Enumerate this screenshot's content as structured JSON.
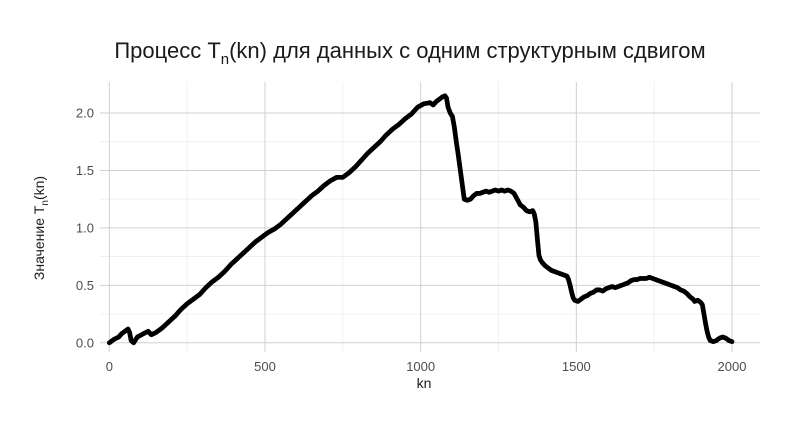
{
  "chart_data": {
    "type": "scatter",
    "title_main": "Процесс T",
    "title_sub": "n",
    "title_rest": "(kn) для данных с одним структурным сдвигом",
    "xlabel": "kn",
    "ylabel_main": "Значение T",
    "ylabel_sub": "n",
    "ylabel_rest": "(kn)",
    "xlim": [
      -30,
      2090
    ],
    "ylim": [
      -0.08,
      2.27
    ],
    "x_ticks": [
      0,
      500,
      1000,
      1500,
      2000
    ],
    "x_tick_labels": [
      "0",
      "500",
      "1000",
      "1500",
      "2000"
    ],
    "y_ticks": [
      0.0,
      0.5,
      1.0,
      1.5,
      2.0
    ],
    "y_tick_labels": [
      "0.0",
      "0.5",
      "1.0",
      "1.5",
      "2.0"
    ],
    "grid": true,
    "point_color": "#000000",
    "points": [
      [
        0,
        0.0
      ],
      [
        15,
        0.03
      ],
      [
        30,
        0.05
      ],
      [
        40,
        0.08
      ],
      [
        50,
        0.1
      ],
      [
        60,
        0.12
      ],
      [
        65,
        0.09
      ],
      [
        70,
        0.02
      ],
      [
        78,
        0.0
      ],
      [
        90,
        0.05
      ],
      [
        110,
        0.08
      ],
      [
        125,
        0.1
      ],
      [
        135,
        0.07
      ],
      [
        150,
        0.09
      ],
      [
        170,
        0.13
      ],
      [
        190,
        0.18
      ],
      [
        210,
        0.23
      ],
      [
        230,
        0.29
      ],
      [
        250,
        0.34
      ],
      [
        270,
        0.38
      ],
      [
        290,
        0.42
      ],
      [
        310,
        0.48
      ],
      [
        330,
        0.53
      ],
      [
        350,
        0.57
      ],
      [
        370,
        0.62
      ],
      [
        390,
        0.68
      ],
      [
        410,
        0.73
      ],
      [
        430,
        0.78
      ],
      [
        450,
        0.83
      ],
      [
        470,
        0.88
      ],
      [
        490,
        0.92
      ],
      [
        510,
        0.96
      ],
      [
        530,
        0.99
      ],
      [
        550,
        1.03
      ],
      [
        570,
        1.08
      ],
      [
        590,
        1.13
      ],
      [
        610,
        1.18
      ],
      [
        630,
        1.23
      ],
      [
        650,
        1.28
      ],
      [
        670,
        1.32
      ],
      [
        690,
        1.37
      ],
      [
        710,
        1.41
      ],
      [
        730,
        1.44
      ],
      [
        750,
        1.44
      ],
      [
        770,
        1.48
      ],
      [
        790,
        1.53
      ],
      [
        810,
        1.59
      ],
      [
        830,
        1.65
      ],
      [
        850,
        1.7
      ],
      [
        870,
        1.75
      ],
      [
        890,
        1.81
      ],
      [
        910,
        1.86
      ],
      [
        930,
        1.9
      ],
      [
        950,
        1.95
      ],
      [
        970,
        1.99
      ],
      [
        990,
        2.05
      ],
      [
        1010,
        2.08
      ],
      [
        1030,
        2.09
      ],
      [
        1040,
        2.07
      ],
      [
        1050,
        2.1
      ],
      [
        1060,
        2.12
      ],
      [
        1070,
        2.14
      ],
      [
        1078,
        2.15
      ],
      [
        1083,
        2.13
      ],
      [
        1088,
        2.05
      ],
      [
        1095,
        2.0
      ],
      [
        1102,
        1.97
      ],
      [
        1108,
        1.88
      ],
      [
        1112,
        1.8
      ],
      [
        1116,
        1.72
      ],
      [
        1120,
        1.65
      ],
      [
        1125,
        1.55
      ],
      [
        1130,
        1.45
      ],
      [
        1135,
        1.35
      ],
      [
        1140,
        1.25
      ],
      [
        1150,
        1.24
      ],
      [
        1160,
        1.25
      ],
      [
        1170,
        1.28
      ],
      [
        1180,
        1.3
      ],
      [
        1190,
        1.3
      ],
      [
        1200,
        1.31
      ],
      [
        1210,
        1.32
      ],
      [
        1220,
        1.31
      ],
      [
        1230,
        1.32
      ],
      [
        1240,
        1.33
      ],
      [
        1250,
        1.32
      ],
      [
        1260,
        1.33
      ],
      [
        1270,
        1.32
      ],
      [
        1280,
        1.33
      ],
      [
        1290,
        1.32
      ],
      [
        1300,
        1.3
      ],
      [
        1310,
        1.25
      ],
      [
        1320,
        1.2
      ],
      [
        1330,
        1.18
      ],
      [
        1340,
        1.15
      ],
      [
        1350,
        1.14
      ],
      [
        1360,
        1.15
      ],
      [
        1365,
        1.12
      ],
      [
        1370,
        1.05
      ],
      [
        1375,
        0.9
      ],
      [
        1380,
        0.76
      ],
      [
        1385,
        0.72
      ],
      [
        1390,
        0.7
      ],
      [
        1400,
        0.67
      ],
      [
        1410,
        0.65
      ],
      [
        1420,
        0.63
      ],
      [
        1430,
        0.62
      ],
      [
        1440,
        0.61
      ],
      [
        1450,
        0.6
      ],
      [
        1460,
        0.59
      ],
      [
        1470,
        0.58
      ],
      [
        1475,
        0.55
      ],
      [
        1480,
        0.5
      ],
      [
        1485,
        0.44
      ],
      [
        1490,
        0.39
      ],
      [
        1495,
        0.37
      ],
      [
        1505,
        0.36
      ],
      [
        1515,
        0.38
      ],
      [
        1525,
        0.4
      ],
      [
        1535,
        0.41
      ],
      [
        1545,
        0.43
      ],
      [
        1555,
        0.44
      ],
      [
        1565,
        0.46
      ],
      [
        1575,
        0.46
      ],
      [
        1585,
        0.45
      ],
      [
        1595,
        0.47
      ],
      [
        1605,
        0.48
      ],
      [
        1615,
        0.49
      ],
      [
        1625,
        0.48
      ],
      [
        1635,
        0.49
      ],
      [
        1645,
        0.5
      ],
      [
        1655,
        0.51
      ],
      [
        1665,
        0.52
      ],
      [
        1675,
        0.54
      ],
      [
        1685,
        0.55
      ],
      [
        1695,
        0.55
      ],
      [
        1705,
        0.56
      ],
      [
        1715,
        0.56
      ],
      [
        1725,
        0.56
      ],
      [
        1735,
        0.57
      ],
      [
        1745,
        0.56
      ],
      [
        1755,
        0.55
      ],
      [
        1765,
        0.54
      ],
      [
        1775,
        0.53
      ],
      [
        1785,
        0.52
      ],
      [
        1795,
        0.51
      ],
      [
        1805,
        0.5
      ],
      [
        1815,
        0.49
      ],
      [
        1825,
        0.48
      ],
      [
        1835,
        0.46
      ],
      [
        1845,
        0.45
      ],
      [
        1855,
        0.43
      ],
      [
        1865,
        0.4
      ],
      [
        1875,
        0.38
      ],
      [
        1880,
        0.36
      ],
      [
        1890,
        0.37
      ],
      [
        1900,
        0.35
      ],
      [
        1905,
        0.33
      ],
      [
        1910,
        0.25
      ],
      [
        1915,
        0.17
      ],
      [
        1920,
        0.1
      ],
      [
        1925,
        0.05
      ],
      [
        1930,
        0.02
      ],
      [
        1940,
        0.01
      ],
      [
        1950,
        0.02
      ],
      [
        1960,
        0.04
      ],
      [
        1970,
        0.05
      ],
      [
        1980,
        0.04
      ],
      [
        1985,
        0.03
      ],
      [
        1990,
        0.02
      ],
      [
        2000,
        0.01
      ]
    ]
  }
}
